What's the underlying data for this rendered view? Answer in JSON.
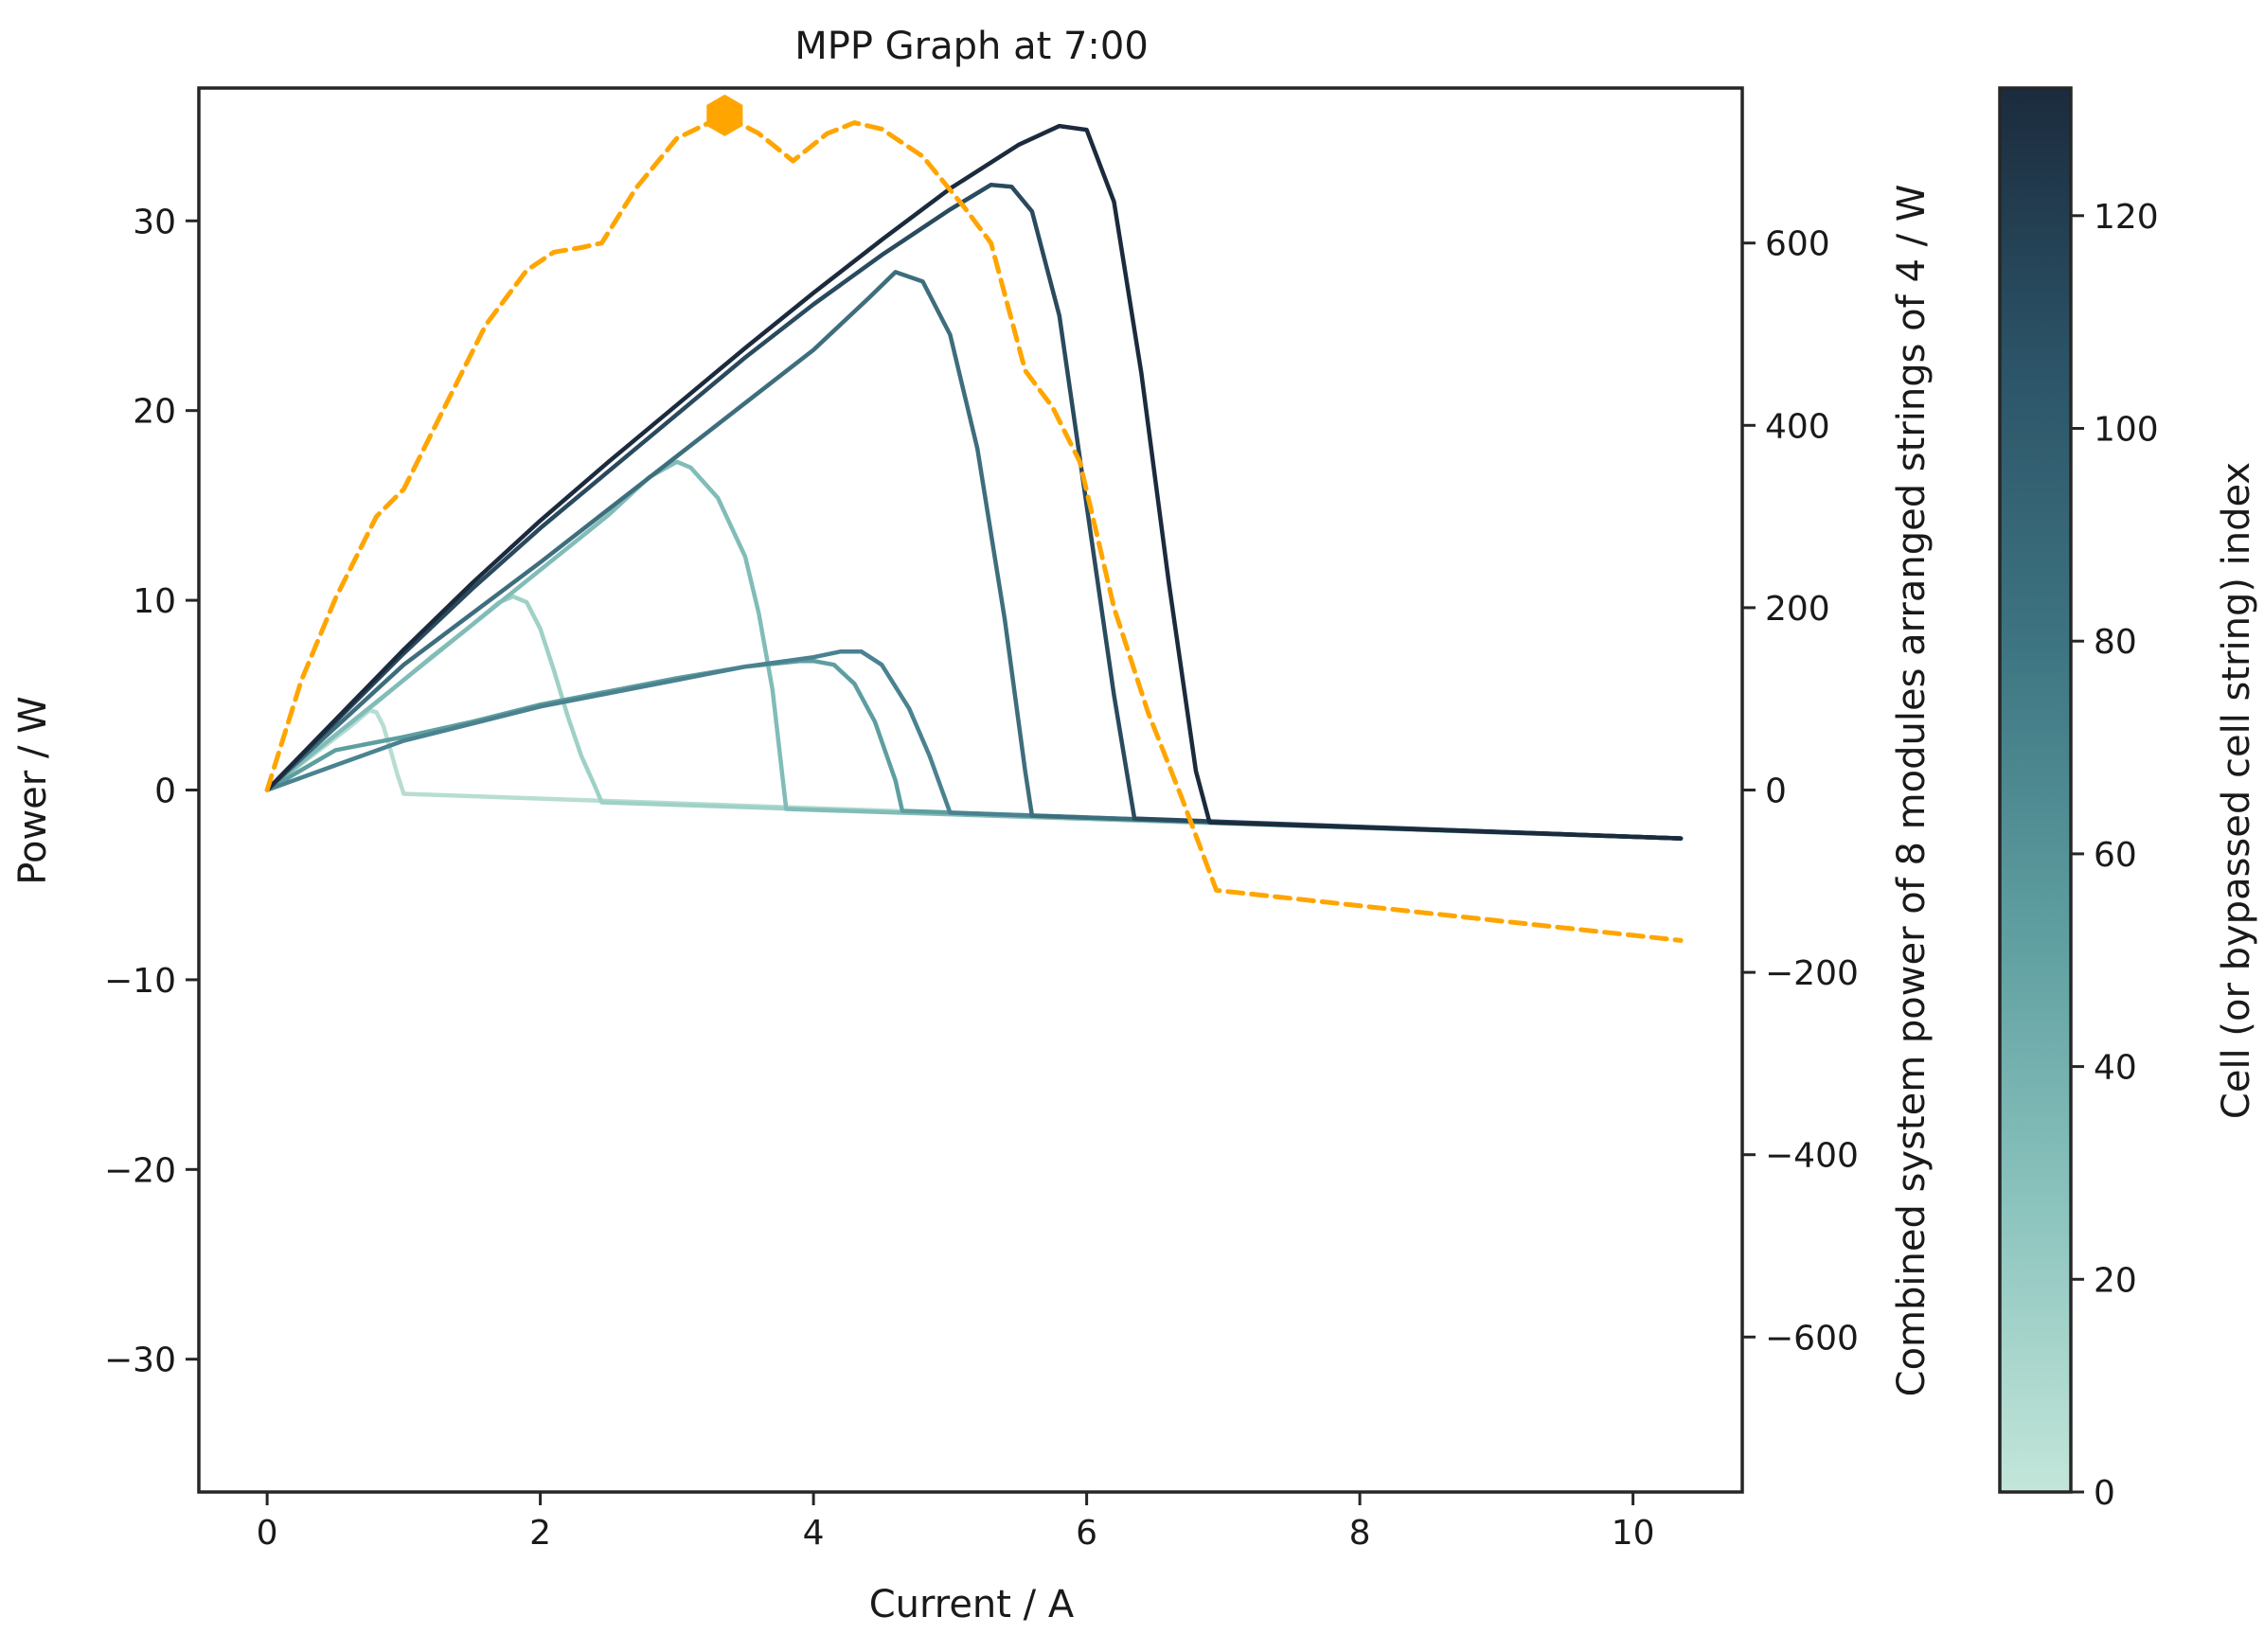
{
  "chart_data": {
    "type": "line",
    "title": "MPP Graph at 7:00",
    "xlabel": "Current / A",
    "ylabel": "Power / W",
    "y2label": "Combined system power of 8 modules arranged strings of 4 / W",
    "colorbar_label": "Cell (or bypassed cell string) index",
    "xlim": [
      -0.5,
      10.8
    ],
    "ylim": [
      -37,
      37
    ],
    "y2lim": [
      -770,
      770
    ],
    "colorbar_lim": [
      0,
      132
    ],
    "x_ticks": [
      0,
      2,
      4,
      6,
      8,
      10
    ],
    "x_tick_labels": [
      "0",
      "2",
      "4",
      "6",
      "8",
      "10"
    ],
    "y_ticks": [
      -30,
      -20,
      -10,
      0,
      10,
      20,
      30
    ],
    "y_tick_labels": [
      "−30",
      "−20",
      "−10",
      "0",
      "10",
      "20",
      "30"
    ],
    "y2_ticks": [
      -600,
      -400,
      -200,
      0,
      200,
      400,
      600
    ],
    "y2_tick_labels": [
      "−600",
      "−400",
      "−200",
      "0",
      "200",
      "400",
      "600"
    ],
    "colorbar_ticks": [
      0,
      20,
      40,
      60,
      80,
      100,
      120
    ],
    "colorbar_tick_labels": [
      "0",
      "20",
      "40",
      "60",
      "80",
      "100",
      "120"
    ],
    "colormap": [
      "#c3e6da",
      "#8cc4be",
      "#5e9ea0",
      "#3e7582",
      "#2c5468",
      "#1b2b3d"
    ],
    "grid": false,
    "legend": "none",
    "series": [
      {
        "cell_index": 8,
        "color": "#b8ddd2",
        "curve": [
          [
            0,
            0
          ],
          [
            0.1,
            0.55
          ],
          [
            0.2,
            1.1
          ],
          [
            0.3,
            1.65
          ],
          [
            0.4,
            2.2
          ],
          [
            0.5,
            2.75
          ],
          [
            0.6,
            3.3
          ],
          [
            0.7,
            3.9
          ],
          [
            0.75,
            4.2
          ],
          [
            0.8,
            4.1
          ],
          [
            0.85,
            3.4
          ],
          [
            0.9,
            2.2
          ],
          [
            0.95,
            0.9
          ],
          [
            1.0,
            -0.2
          ]
        ],
        "tail_end": [
          10.35,
          -2.55
        ]
      },
      {
        "cell_index": 30,
        "color": "#9fd1c6",
        "curve": [
          [
            0,
            0
          ],
          [
            0.4,
            2.3
          ],
          [
            0.8,
            4.6
          ],
          [
            1.2,
            7.0
          ],
          [
            1.5,
            8.7
          ],
          [
            1.7,
            9.9
          ],
          [
            1.8,
            10.2
          ],
          [
            1.9,
            9.9
          ],
          [
            2.0,
            8.5
          ],
          [
            2.1,
            6.3
          ],
          [
            2.2,
            3.9
          ],
          [
            2.3,
            1.8
          ],
          [
            2.4,
            0.2
          ],
          [
            2.45,
            -0.65
          ]
        ],
        "tail_end": [
          10.35,
          -2.55
        ]
      },
      {
        "cell_index": 45,
        "color": "#81bcb8",
        "curve": [
          [
            0,
            0
          ],
          [
            0.5,
            2.9
          ],
          [
            1.0,
            5.8
          ],
          [
            1.5,
            8.7
          ],
          [
            2.0,
            11.6
          ],
          [
            2.5,
            14.5
          ],
          [
            2.8,
            16.5
          ],
          [
            3.0,
            17.3
          ],
          [
            3.1,
            17.0
          ],
          [
            3.3,
            15.4
          ],
          [
            3.5,
            12.3
          ],
          [
            3.6,
            9.3
          ],
          [
            3.7,
            5.3
          ],
          [
            3.8,
            -1.0
          ]
        ],
        "tail_end": [
          10.35,
          -2.55
        ]
      },
      {
        "cell_index": 65,
        "color": "#5e9ea0",
        "curve": [
          [
            0,
            0
          ],
          [
            0.5,
            2.1
          ],
          [
            1.0,
            2.8
          ],
          [
            1.5,
            3.6
          ],
          [
            2.0,
            4.5
          ],
          [
            2.5,
            5.2
          ],
          [
            3.0,
            5.9
          ],
          [
            3.5,
            6.5
          ],
          [
            3.9,
            6.8
          ],
          [
            4.0,
            6.8
          ],
          [
            4.15,
            6.6
          ],
          [
            4.3,
            5.6
          ],
          [
            4.45,
            3.6
          ],
          [
            4.6,
            0.5
          ],
          [
            4.65,
            -1.1
          ]
        ],
        "tail_end": [
          10.35,
          -2.55
        ]
      },
      {
        "cell_index": 78,
        "color": "#4a8290",
        "curve": [
          [
            0,
            0
          ],
          [
            0.5,
            1.3
          ],
          [
            1.0,
            2.6
          ],
          [
            1.5,
            3.5
          ],
          [
            2.0,
            4.4
          ],
          [
            2.5,
            5.1
          ],
          [
            3.0,
            5.8
          ],
          [
            3.5,
            6.5
          ],
          [
            4.0,
            7.0
          ],
          [
            4.2,
            7.3
          ],
          [
            4.35,
            7.3
          ],
          [
            4.5,
            6.6
          ],
          [
            4.7,
            4.3
          ],
          [
            4.85,
            1.8
          ],
          [
            5.0,
            -1.2
          ]
        ],
        "tail_end": [
          10.35,
          -2.55
        ]
      },
      {
        "cell_index": 92,
        "color": "#3e6e7d",
        "curve": [
          [
            0,
            0
          ],
          [
            0.5,
            3.3
          ],
          [
            1.0,
            6.6
          ],
          [
            1.5,
            9.3
          ],
          [
            2.0,
            12.0
          ],
          [
            2.5,
            14.8
          ],
          [
            3.0,
            17.6
          ],
          [
            3.5,
            20.4
          ],
          [
            4.0,
            23.2
          ],
          [
            4.4,
            25.9
          ],
          [
            4.6,
            27.3
          ],
          [
            4.8,
            26.8
          ],
          [
            5.0,
            24.0
          ],
          [
            5.2,
            18.0
          ],
          [
            5.4,
            9.0
          ],
          [
            5.55,
            1.0
          ],
          [
            5.6,
            -1.35
          ]
        ],
        "tail_end": [
          10.35,
          -2.55
        ]
      },
      {
        "cell_index": 112,
        "color": "#2a4a5e",
        "curve": [
          [
            0,
            0
          ],
          [
            0.5,
            3.6
          ],
          [
            1.0,
            7.2
          ],
          [
            1.5,
            10.6
          ],
          [
            2.0,
            13.8
          ],
          [
            2.5,
            16.8
          ],
          [
            3.0,
            19.8
          ],
          [
            3.5,
            22.8
          ],
          [
            4.0,
            25.6
          ],
          [
            4.5,
            28.2
          ],
          [
            5.0,
            30.6
          ],
          [
            5.3,
            31.9
          ],
          [
            5.45,
            31.8
          ],
          [
            5.6,
            30.5
          ],
          [
            5.8,
            25.0
          ],
          [
            6.0,
            15.0
          ],
          [
            6.2,
            5.0
          ],
          [
            6.35,
            -1.5
          ]
        ],
        "tail_end": [
          10.35,
          -2.55
        ]
      },
      {
        "cell_index": 130,
        "color": "#1b2b3d",
        "curve": [
          [
            0,
            0
          ],
          [
            0.5,
            3.7
          ],
          [
            1.0,
            7.4
          ],
          [
            1.5,
            10.9
          ],
          [
            2.0,
            14.2
          ],
          [
            2.5,
            17.3
          ],
          [
            3.0,
            20.3
          ],
          [
            3.5,
            23.3
          ],
          [
            4.0,
            26.2
          ],
          [
            4.5,
            29.0
          ],
          [
            5.0,
            31.7
          ],
          [
            5.5,
            34.0
          ],
          [
            5.8,
            35.0
          ],
          [
            6.0,
            34.8
          ],
          [
            6.2,
            31.0
          ],
          [
            6.4,
            22.0
          ],
          [
            6.6,
            11.0
          ],
          [
            6.8,
            1.0
          ],
          [
            6.9,
            -1.7
          ]
        ],
        "tail_end": [
          10.35,
          -2.55
        ]
      },
      {
        "name": "combined",
        "axis": "y2",
        "color": "#ffa500",
        "dashed": true,
        "curve": [
          [
            0,
            0
          ],
          [
            0.25,
            120
          ],
          [
            0.5,
            210
          ],
          [
            0.8,
            300
          ],
          [
            1.0,
            330
          ],
          [
            1.3,
            420
          ],
          [
            1.6,
            510
          ],
          [
            1.9,
            570
          ],
          [
            2.1,
            590
          ],
          [
            2.3,
            595
          ],
          [
            2.45,
            600
          ],
          [
            2.7,
            660
          ],
          [
            3.0,
            715
          ],
          [
            3.35,
            740
          ],
          [
            3.6,
            720
          ],
          [
            3.85,
            690
          ],
          [
            4.1,
            720
          ],
          [
            4.3,
            732
          ],
          [
            4.5,
            725
          ],
          [
            4.8,
            695
          ],
          [
            5.1,
            640
          ],
          [
            5.3,
            600
          ],
          [
            5.55,
            460
          ],
          [
            5.75,
            420
          ],
          [
            5.95,
            360
          ],
          [
            6.2,
            200
          ],
          [
            6.45,
            85
          ],
          [
            6.7,
            -10
          ],
          [
            6.95,
            -110
          ],
          [
            10.35,
            -165
          ]
        ]
      }
    ],
    "mpp_marker": {
      "x": 3.35,
      "y2": 740,
      "color": "#ffa500"
    }
  }
}
